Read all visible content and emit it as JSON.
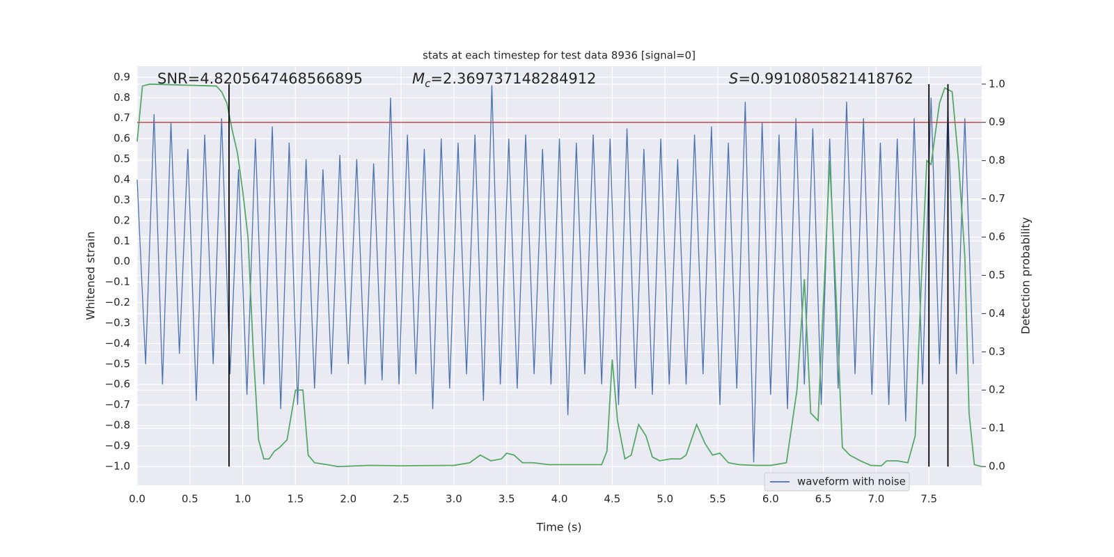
{
  "chart_data": {
    "type": "line",
    "title": "stats at each timestep for test data 8936 [signal=0]",
    "x_label": "Time (s)",
    "y_label": "Whitened strain",
    "y2_label": "Detection probability",
    "annotations": [
      {
        "text": "SNR=4.8205647468566895"
      },
      {
        "symbol": "M",
        "subscript": "c",
        "text": "=2.369737148284912"
      },
      {
        "symbol": "S",
        "text": "=0.9910805821418762"
      }
    ],
    "xlim": [
      0,
      8
    ],
    "ylim": [
      -1.092,
      0.954
    ],
    "y2lim": [
      -0.049,
      1.047
    ],
    "xticks": [
      {
        "value": 0,
        "label": "0.0"
      },
      0.5,
      {
        "value": 1,
        "label": "1.0"
      },
      1.5,
      {
        "value": 2,
        "label": "2.0"
      },
      2.5,
      {
        "value": 3,
        "label": "3.0"
      },
      3.5,
      {
        "value": 4,
        "label": "4.0"
      },
      4.5,
      {
        "value": 5,
        "label": "5.0"
      },
      5.5,
      {
        "value": 6,
        "label": "6.0"
      },
      6.5,
      {
        "value": 7,
        "label": "7.0"
      },
      7.5
    ],
    "yticks": [
      {
        "value": -1,
        "label": "−1.0"
      },
      {
        "value": -0.9,
        "label": "−0.9"
      },
      {
        "value": -0.8,
        "label": "−0.8"
      },
      {
        "value": -0.7,
        "label": "−0.7"
      },
      {
        "value": -0.6,
        "label": "−0.6"
      },
      {
        "value": -0.5,
        "label": "−0.5"
      },
      {
        "value": -0.4,
        "label": "−0.4"
      },
      {
        "value": -0.3,
        "label": "−0.3"
      },
      {
        "value": -0.2,
        "label": "−0.2"
      },
      {
        "value": -0.1,
        "label": "−0.1"
      },
      {
        "value": 0,
        "label": "0.0"
      },
      0.1,
      0.2,
      0.3,
      0.4,
      0.5,
      0.6,
      0.7,
      0.8,
      0.9
    ],
    "y2ticks": [
      {
        "value": 0,
        "label": "0.0"
      },
      0.1,
      0.2,
      0.3,
      0.4,
      0.5,
      0.6,
      0.7,
      0.8,
      0.9,
      {
        "value": 1,
        "label": "1.0"
      }
    ],
    "grid": true,
    "legend": "lower right",
    "series": [
      {
        "name": "waveform with noise",
        "color": "#4c72b0",
        "x": [
          0,
          0.08,
          0.16,
          0.24,
          0.32,
          0.4,
          0.48,
          0.56,
          0.64,
          0.72,
          0.8,
          0.88,
          0.96,
          1.04,
          1.12,
          1.2,
          1.28,
          1.36,
          1.44,
          1.52,
          1.6,
          1.68,
          1.76,
          1.84,
          1.92,
          2,
          2.08,
          2.16,
          2.24,
          2.32,
          2.4,
          2.48,
          2.56,
          2.64,
          2.72,
          2.8,
          2.88,
          2.96,
          3.04,
          3.12,
          3.2,
          3.28,
          3.36,
          3.44,
          3.52,
          3.6,
          3.68,
          3.76,
          3.84,
          3.92,
          4,
          4.08,
          4.16,
          4.24,
          4.32,
          4.4,
          4.48,
          4.56,
          4.64,
          4.72,
          4.8,
          4.88,
          4.96,
          5.04,
          5.12,
          5.2,
          5.28,
          5.36,
          5.44,
          5.52,
          5.6,
          5.68,
          5.76,
          5.84,
          5.92,
          6,
          6.08,
          6.16,
          6.24,
          6.32,
          6.4,
          6.48,
          6.56,
          6.64,
          6.72,
          6.8,
          6.88,
          6.96,
          7.04,
          7.12,
          7.2,
          7.28,
          7.36,
          7.44,
          7.52,
          7.6,
          7.68,
          7.76,
          7.84,
          7.92
        ],
        "values": [
          0.4,
          -0.5,
          0.72,
          -0.6,
          0.68,
          -0.45,
          0.55,
          -0.68,
          0.62,
          -0.5,
          0.7,
          -0.55,
          0.45,
          -0.65,
          0.6,
          -0.6,
          0.66,
          -0.72,
          0.58,
          -0.7,
          0.5,
          -0.62,
          0.45,
          -0.55,
          0.52,
          -0.5,
          0.5,
          -0.6,
          0.48,
          -0.58,
          0.8,
          -0.6,
          0.62,
          -0.55,
          0.55,
          -0.72,
          0.6,
          -0.62,
          0.58,
          -0.55,
          0.62,
          -0.68,
          0.86,
          -0.6,
          0.6,
          -0.62,
          0.62,
          -0.55,
          0.55,
          -0.6,
          0.6,
          -0.75,
          0.58,
          -0.55,
          0.62,
          -0.6,
          0.6,
          -0.7,
          0.65,
          -0.62,
          0.55,
          -0.65,
          0.6,
          -0.6,
          0.5,
          -0.6,
          0.62,
          -0.55,
          0.66,
          -0.7,
          0.58,
          -0.62,
          0.78,
          -0.98,
          0.68,
          -0.65,
          0.62,
          -0.72,
          0.7,
          -0.6,
          0.65,
          -0.7,
          0.6,
          -0.62,
          0.78,
          -0.55,
          0.7,
          -0.65,
          0.58,
          -0.7,
          0.6,
          -0.78,
          0.7,
          -0.6,
          0.8,
          -0.5,
          0.75,
          -0.55,
          0.7,
          -0.5
        ]
      },
      {
        "color": "#55a868",
        "axis": "y2",
        "x": [
          0,
          0.05,
          0.12,
          0.75,
          0.8,
          0.85,
          0.9,
          0.95,
          1,
          1.05,
          1.1,
          1.15,
          1.2,
          1.25,
          1.3,
          1.35,
          1.42,
          1.5,
          1.57,
          1.62,
          1.68,
          1.8,
          1.9,
          2.2,
          2.5,
          3,
          3.15,
          3.25,
          3.35,
          3.45,
          3.5,
          3.57,
          3.65,
          3.75,
          3.9,
          4.1,
          4.4,
          4.45,
          4.5,
          4.55,
          4.62,
          4.68,
          4.75,
          4.82,
          4.88,
          4.95,
          5.05,
          5.15,
          5.2,
          5.3,
          5.38,
          5.45,
          5.52,
          5.6,
          5.7,
          5.85,
          6,
          6.15,
          6.25,
          6.32,
          6.38,
          6.45,
          6.52,
          6.56,
          6.62,
          6.68,
          6.75,
          6.85,
          6.95,
          7.05,
          7.1,
          7.2,
          7.3,
          7.37,
          7.43,
          7.48,
          7.52,
          7.6,
          7.65,
          7.72,
          7.78,
          7.84,
          7.88,
          7.93,
          8
        ],
        "values": [
          0.85,
          0.995,
          1,
          0.995,
          0.98,
          0.95,
          0.88,
          0.82,
          0.72,
          0.6,
          0.3,
          0.07,
          0.02,
          0.02,
          0.04,
          0.05,
          0.07,
          0.2,
          0.2,
          0.03,
          0.01,
          0.005,
          0,
          0.003,
          0.002,
          0.003,
          0.01,
          0.03,
          0.015,
          0.02,
          0.035,
          0.03,
          0.01,
          0.01,
          0.005,
          0.005,
          0.005,
          0.04,
          0.28,
          0.12,
          0.02,
          0.03,
          0.11,
          0.08,
          0.025,
          0.015,
          0.02,
          0.02,
          0.03,
          0.11,
          0.06,
          0.03,
          0.035,
          0.01,
          0.005,
          0.003,
          0.003,
          0.01,
          0.2,
          0.49,
          0.14,
          0.12,
          0.55,
          0.8,
          0.45,
          0.05,
          0.03,
          0.015,
          0.003,
          0.002,
          0.015,
          0.015,
          0.01,
          0.08,
          0.5,
          0.8,
          0.79,
          0.95,
          0.99,
          0.98,
          0.8,
          0.55,
          0.14,
          0.005,
          0
        ]
      }
    ],
    "hlines": [
      {
        "y": 0.9,
        "axis": "y2",
        "color": "#c44e52"
      }
    ],
    "vlines": {
      "x": [
        0.87,
        7.5,
        7.68
      ],
      "ymin": 0,
      "ymax": 1,
      "axis": "y2",
      "color": "#000000"
    }
  }
}
